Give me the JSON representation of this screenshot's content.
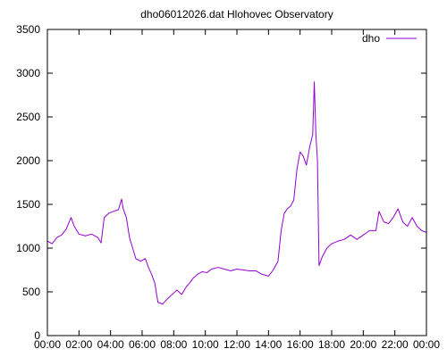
{
  "chart_data": {
    "type": "line",
    "title": "dho06012026.dat Hlohovec Observatory",
    "xlabel": "",
    "ylabel": "",
    "xlim": [
      0,
      24
    ],
    "ylim": [
      0,
      3500
    ],
    "x_ticks": [
      0,
      2,
      4,
      6,
      8,
      10,
      12,
      14,
      16,
      18,
      20,
      22,
      24
    ],
    "x_tick_labels": [
      "00:00",
      "02:00",
      "04:00",
      "06:00",
      "08:00",
      "10:00",
      "12:00",
      "14:00",
      "16:00",
      "18:00",
      "20:00",
      "22:00",
      "00:00"
    ],
    "y_ticks": [
      0,
      500,
      1000,
      1500,
      2000,
      2500,
      3000,
      3500
    ],
    "y_tick_labels": [
      "0",
      "500",
      "1000",
      "1500",
      "2000",
      "2500",
      "3000",
      "3500"
    ],
    "grid": false,
    "legend_position": "top-right",
    "series": [
      {
        "name": "dho",
        "color": "#9400d3",
        "points": [
          [
            0.0,
            1080
          ],
          [
            0.3,
            1050
          ],
          [
            0.6,
            1120
          ],
          [
            0.9,
            1150
          ],
          [
            1.2,
            1220
          ],
          [
            1.5,
            1350
          ],
          [
            1.7,
            1250
          ],
          [
            2.0,
            1160
          ],
          [
            2.4,
            1140
          ],
          [
            2.8,
            1160
          ],
          [
            3.2,
            1120
          ],
          [
            3.4,
            1060
          ],
          [
            3.6,
            1350
          ],
          [
            3.9,
            1400
          ],
          [
            4.2,
            1420
          ],
          [
            4.5,
            1440
          ],
          [
            4.7,
            1560
          ],
          [
            4.8,
            1450
          ],
          [
            5.0,
            1350
          ],
          [
            5.2,
            1120
          ],
          [
            5.4,
            1000
          ],
          [
            5.6,
            880
          ],
          [
            5.9,
            850
          ],
          [
            6.2,
            880
          ],
          [
            6.4,
            780
          ],
          [
            6.6,
            700
          ],
          [
            6.8,
            600
          ],
          [
            7.0,
            380
          ],
          [
            7.3,
            360
          ],
          [
            7.6,
            420
          ],
          [
            7.9,
            470
          ],
          [
            8.2,
            520
          ],
          [
            8.5,
            470
          ],
          [
            8.8,
            560
          ],
          [
            9.0,
            600
          ],
          [
            9.2,
            650
          ],
          [
            9.5,
            700
          ],
          [
            9.8,
            730
          ],
          [
            10.1,
            720
          ],
          [
            10.4,
            760
          ],
          [
            10.8,
            780
          ],
          [
            11.2,
            760
          ],
          [
            11.6,
            740
          ],
          [
            12.0,
            760
          ],
          [
            12.4,
            750
          ],
          [
            12.8,
            740
          ],
          [
            13.2,
            740
          ],
          [
            13.6,
            700
          ],
          [
            14.0,
            680
          ],
          [
            14.3,
            750
          ],
          [
            14.6,
            850
          ],
          [
            14.8,
            1200
          ],
          [
            15.0,
            1400
          ],
          [
            15.2,
            1450
          ],
          [
            15.4,
            1480
          ],
          [
            15.6,
            1550
          ],
          [
            15.8,
            1900
          ],
          [
            16.0,
            2100
          ],
          [
            16.2,
            2050
          ],
          [
            16.4,
            1950
          ],
          [
            16.6,
            2150
          ],
          [
            16.8,
            2300
          ],
          [
            16.9,
            2900
          ],
          [
            17.0,
            2300
          ],
          [
            17.1,
            2000
          ],
          [
            17.2,
            800
          ],
          [
            17.4,
            900
          ],
          [
            17.7,
            1000
          ],
          [
            18.0,
            1050
          ],
          [
            18.4,
            1080
          ],
          [
            18.8,
            1100
          ],
          [
            19.2,
            1150
          ],
          [
            19.6,
            1100
          ],
          [
            20.0,
            1150
          ],
          [
            20.4,
            1200
          ],
          [
            20.8,
            1200
          ],
          [
            21.0,
            1420
          ],
          [
            21.3,
            1300
          ],
          [
            21.6,
            1280
          ],
          [
            21.9,
            1350
          ],
          [
            22.2,
            1450
          ],
          [
            22.5,
            1300
          ],
          [
            22.8,
            1250
          ],
          [
            23.1,
            1350
          ],
          [
            23.4,
            1250
          ],
          [
            23.7,
            1200
          ],
          [
            24.0,
            1180
          ]
        ]
      }
    ]
  }
}
